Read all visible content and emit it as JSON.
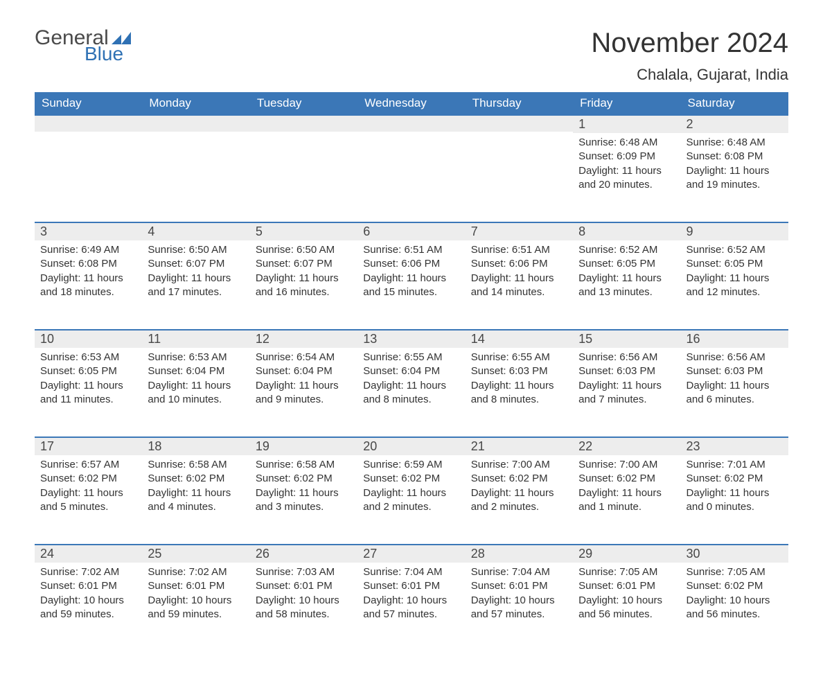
{
  "logo": {
    "text1": "General",
    "text2": "Blue",
    "flag_color": "#2f71b4"
  },
  "title": "November 2024",
  "location": "Chalala, Gujarat, India",
  "colors": {
    "header_bg": "#3b77b7",
    "header_text": "#ffffff",
    "daynum_bg": "#ededed",
    "daynum_border": "#3b77b7",
    "body_text": "#333333",
    "logo_gray": "#4a4a4a",
    "logo_blue": "#2f71b4",
    "page_bg": "#ffffff"
  },
  "weekdays": [
    "Sunday",
    "Monday",
    "Tuesday",
    "Wednesday",
    "Thursday",
    "Friday",
    "Saturday"
  ],
  "weeks": [
    [
      null,
      null,
      null,
      null,
      null,
      {
        "n": "1",
        "sr": "Sunrise: 6:48 AM",
        "ss": "Sunset: 6:09 PM",
        "dl": "Daylight: 11 hours and 20 minutes."
      },
      {
        "n": "2",
        "sr": "Sunrise: 6:48 AM",
        "ss": "Sunset: 6:08 PM",
        "dl": "Daylight: 11 hours and 19 minutes."
      }
    ],
    [
      {
        "n": "3",
        "sr": "Sunrise: 6:49 AM",
        "ss": "Sunset: 6:08 PM",
        "dl": "Daylight: 11 hours and 18 minutes."
      },
      {
        "n": "4",
        "sr": "Sunrise: 6:50 AM",
        "ss": "Sunset: 6:07 PM",
        "dl": "Daylight: 11 hours and 17 minutes."
      },
      {
        "n": "5",
        "sr": "Sunrise: 6:50 AM",
        "ss": "Sunset: 6:07 PM",
        "dl": "Daylight: 11 hours and 16 minutes."
      },
      {
        "n": "6",
        "sr": "Sunrise: 6:51 AM",
        "ss": "Sunset: 6:06 PM",
        "dl": "Daylight: 11 hours and 15 minutes."
      },
      {
        "n": "7",
        "sr": "Sunrise: 6:51 AM",
        "ss": "Sunset: 6:06 PM",
        "dl": "Daylight: 11 hours and 14 minutes."
      },
      {
        "n": "8",
        "sr": "Sunrise: 6:52 AM",
        "ss": "Sunset: 6:05 PM",
        "dl": "Daylight: 11 hours and 13 minutes."
      },
      {
        "n": "9",
        "sr": "Sunrise: 6:52 AM",
        "ss": "Sunset: 6:05 PM",
        "dl": "Daylight: 11 hours and 12 minutes."
      }
    ],
    [
      {
        "n": "10",
        "sr": "Sunrise: 6:53 AM",
        "ss": "Sunset: 6:05 PM",
        "dl": "Daylight: 11 hours and 11 minutes."
      },
      {
        "n": "11",
        "sr": "Sunrise: 6:53 AM",
        "ss": "Sunset: 6:04 PM",
        "dl": "Daylight: 11 hours and 10 minutes."
      },
      {
        "n": "12",
        "sr": "Sunrise: 6:54 AM",
        "ss": "Sunset: 6:04 PM",
        "dl": "Daylight: 11 hours and 9 minutes."
      },
      {
        "n": "13",
        "sr": "Sunrise: 6:55 AM",
        "ss": "Sunset: 6:04 PM",
        "dl": "Daylight: 11 hours and 8 minutes."
      },
      {
        "n": "14",
        "sr": "Sunrise: 6:55 AM",
        "ss": "Sunset: 6:03 PM",
        "dl": "Daylight: 11 hours and 8 minutes."
      },
      {
        "n": "15",
        "sr": "Sunrise: 6:56 AM",
        "ss": "Sunset: 6:03 PM",
        "dl": "Daylight: 11 hours and 7 minutes."
      },
      {
        "n": "16",
        "sr": "Sunrise: 6:56 AM",
        "ss": "Sunset: 6:03 PM",
        "dl": "Daylight: 11 hours and 6 minutes."
      }
    ],
    [
      {
        "n": "17",
        "sr": "Sunrise: 6:57 AM",
        "ss": "Sunset: 6:02 PM",
        "dl": "Daylight: 11 hours and 5 minutes."
      },
      {
        "n": "18",
        "sr": "Sunrise: 6:58 AM",
        "ss": "Sunset: 6:02 PM",
        "dl": "Daylight: 11 hours and 4 minutes."
      },
      {
        "n": "19",
        "sr": "Sunrise: 6:58 AM",
        "ss": "Sunset: 6:02 PM",
        "dl": "Daylight: 11 hours and 3 minutes."
      },
      {
        "n": "20",
        "sr": "Sunrise: 6:59 AM",
        "ss": "Sunset: 6:02 PM",
        "dl": "Daylight: 11 hours and 2 minutes."
      },
      {
        "n": "21",
        "sr": "Sunrise: 7:00 AM",
        "ss": "Sunset: 6:02 PM",
        "dl": "Daylight: 11 hours and 2 minutes."
      },
      {
        "n": "22",
        "sr": "Sunrise: 7:00 AM",
        "ss": "Sunset: 6:02 PM",
        "dl": "Daylight: 11 hours and 1 minute."
      },
      {
        "n": "23",
        "sr": "Sunrise: 7:01 AM",
        "ss": "Sunset: 6:02 PM",
        "dl": "Daylight: 11 hours and 0 minutes."
      }
    ],
    [
      {
        "n": "24",
        "sr": "Sunrise: 7:02 AM",
        "ss": "Sunset: 6:01 PM",
        "dl": "Daylight: 10 hours and 59 minutes."
      },
      {
        "n": "25",
        "sr": "Sunrise: 7:02 AM",
        "ss": "Sunset: 6:01 PM",
        "dl": "Daylight: 10 hours and 59 minutes."
      },
      {
        "n": "26",
        "sr": "Sunrise: 7:03 AM",
        "ss": "Sunset: 6:01 PM",
        "dl": "Daylight: 10 hours and 58 minutes."
      },
      {
        "n": "27",
        "sr": "Sunrise: 7:04 AM",
        "ss": "Sunset: 6:01 PM",
        "dl": "Daylight: 10 hours and 57 minutes."
      },
      {
        "n": "28",
        "sr": "Sunrise: 7:04 AM",
        "ss": "Sunset: 6:01 PM",
        "dl": "Daylight: 10 hours and 57 minutes."
      },
      {
        "n": "29",
        "sr": "Sunrise: 7:05 AM",
        "ss": "Sunset: 6:01 PM",
        "dl": "Daylight: 10 hours and 56 minutes."
      },
      {
        "n": "30",
        "sr": "Sunrise: 7:05 AM",
        "ss": "Sunset: 6:02 PM",
        "dl": "Daylight: 10 hours and 56 minutes."
      }
    ]
  ]
}
